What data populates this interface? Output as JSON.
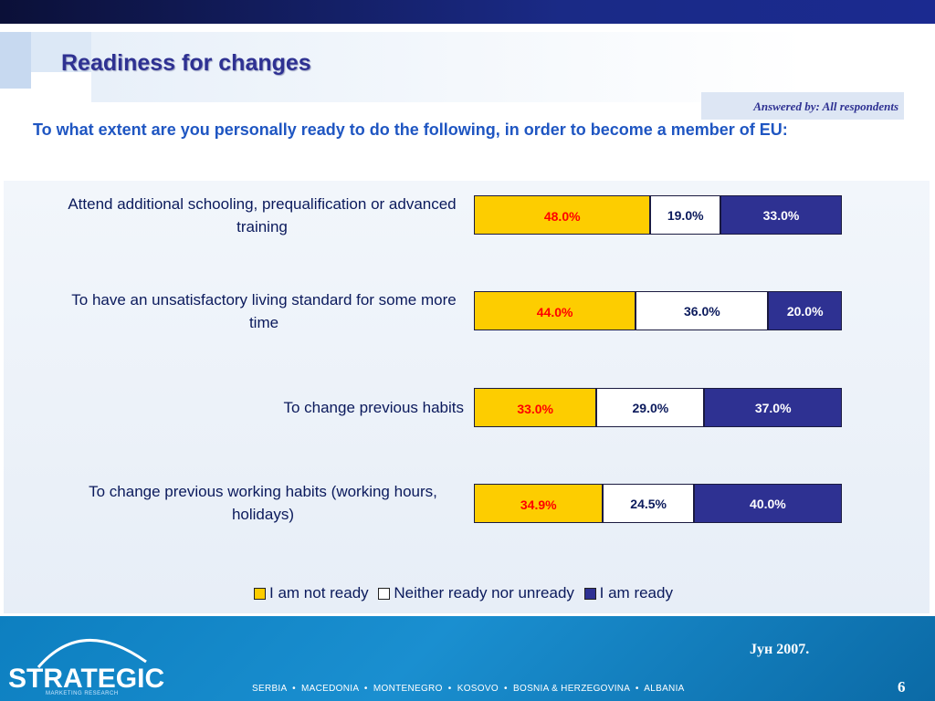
{
  "slide": {
    "title": "Readiness for changes",
    "answered_by": "Answered by: All respondents",
    "question": "To what extent are you personally ready to do the following, in order to become a member of EU:"
  },
  "colors": {
    "not_ready": "#fdcd00",
    "neutral": "#ffffff",
    "ready": "#2e3192",
    "not_ready_label": "#ff0000",
    "neutral_label": "#0b1a5c",
    "ready_label": "#ffffff"
  },
  "chart_data": {
    "type": "bar",
    "orientation": "horizontal",
    "stacked": "100%",
    "categories": [
      "Attend additional schooling, prequalification or advanced training",
      "To have an unsatisfactory living standard for some more time",
      "To change previous habits",
      "To change previous working habits (working hours, holidays)"
    ],
    "series": [
      {
        "name": "I am not ready",
        "values": [
          48.0,
          44.0,
          33.0,
          34.9
        ],
        "labels": [
          "48.0%",
          "44.0%",
          "33.0%",
          "34.9%"
        ]
      },
      {
        "name": "Neither ready nor unready",
        "values": [
          19.0,
          36.0,
          29.0,
          24.5
        ],
        "labels": [
          "19.0%",
          "36.0%",
          "29.0%",
          "24.5%"
        ]
      },
      {
        "name": "I am ready",
        "values": [
          33.0,
          20.0,
          37.0,
          40.0
        ],
        "labels": [
          "33.0%",
          "20.0%",
          "37.0%",
          "40.0%"
        ]
      }
    ],
    "legend": "bottom"
  },
  "footer": {
    "logo": "STRATEGIC",
    "logo_sub": "MARKETING RESEARCH",
    "countries": "SERBIA  •  MACEDONIA  •  MONTENEGRO  •  KOSOVO  •  BOSNIA & HERZEGOVINA  •  ALBANIA",
    "date": "Јун 2007.",
    "page": "6"
  }
}
